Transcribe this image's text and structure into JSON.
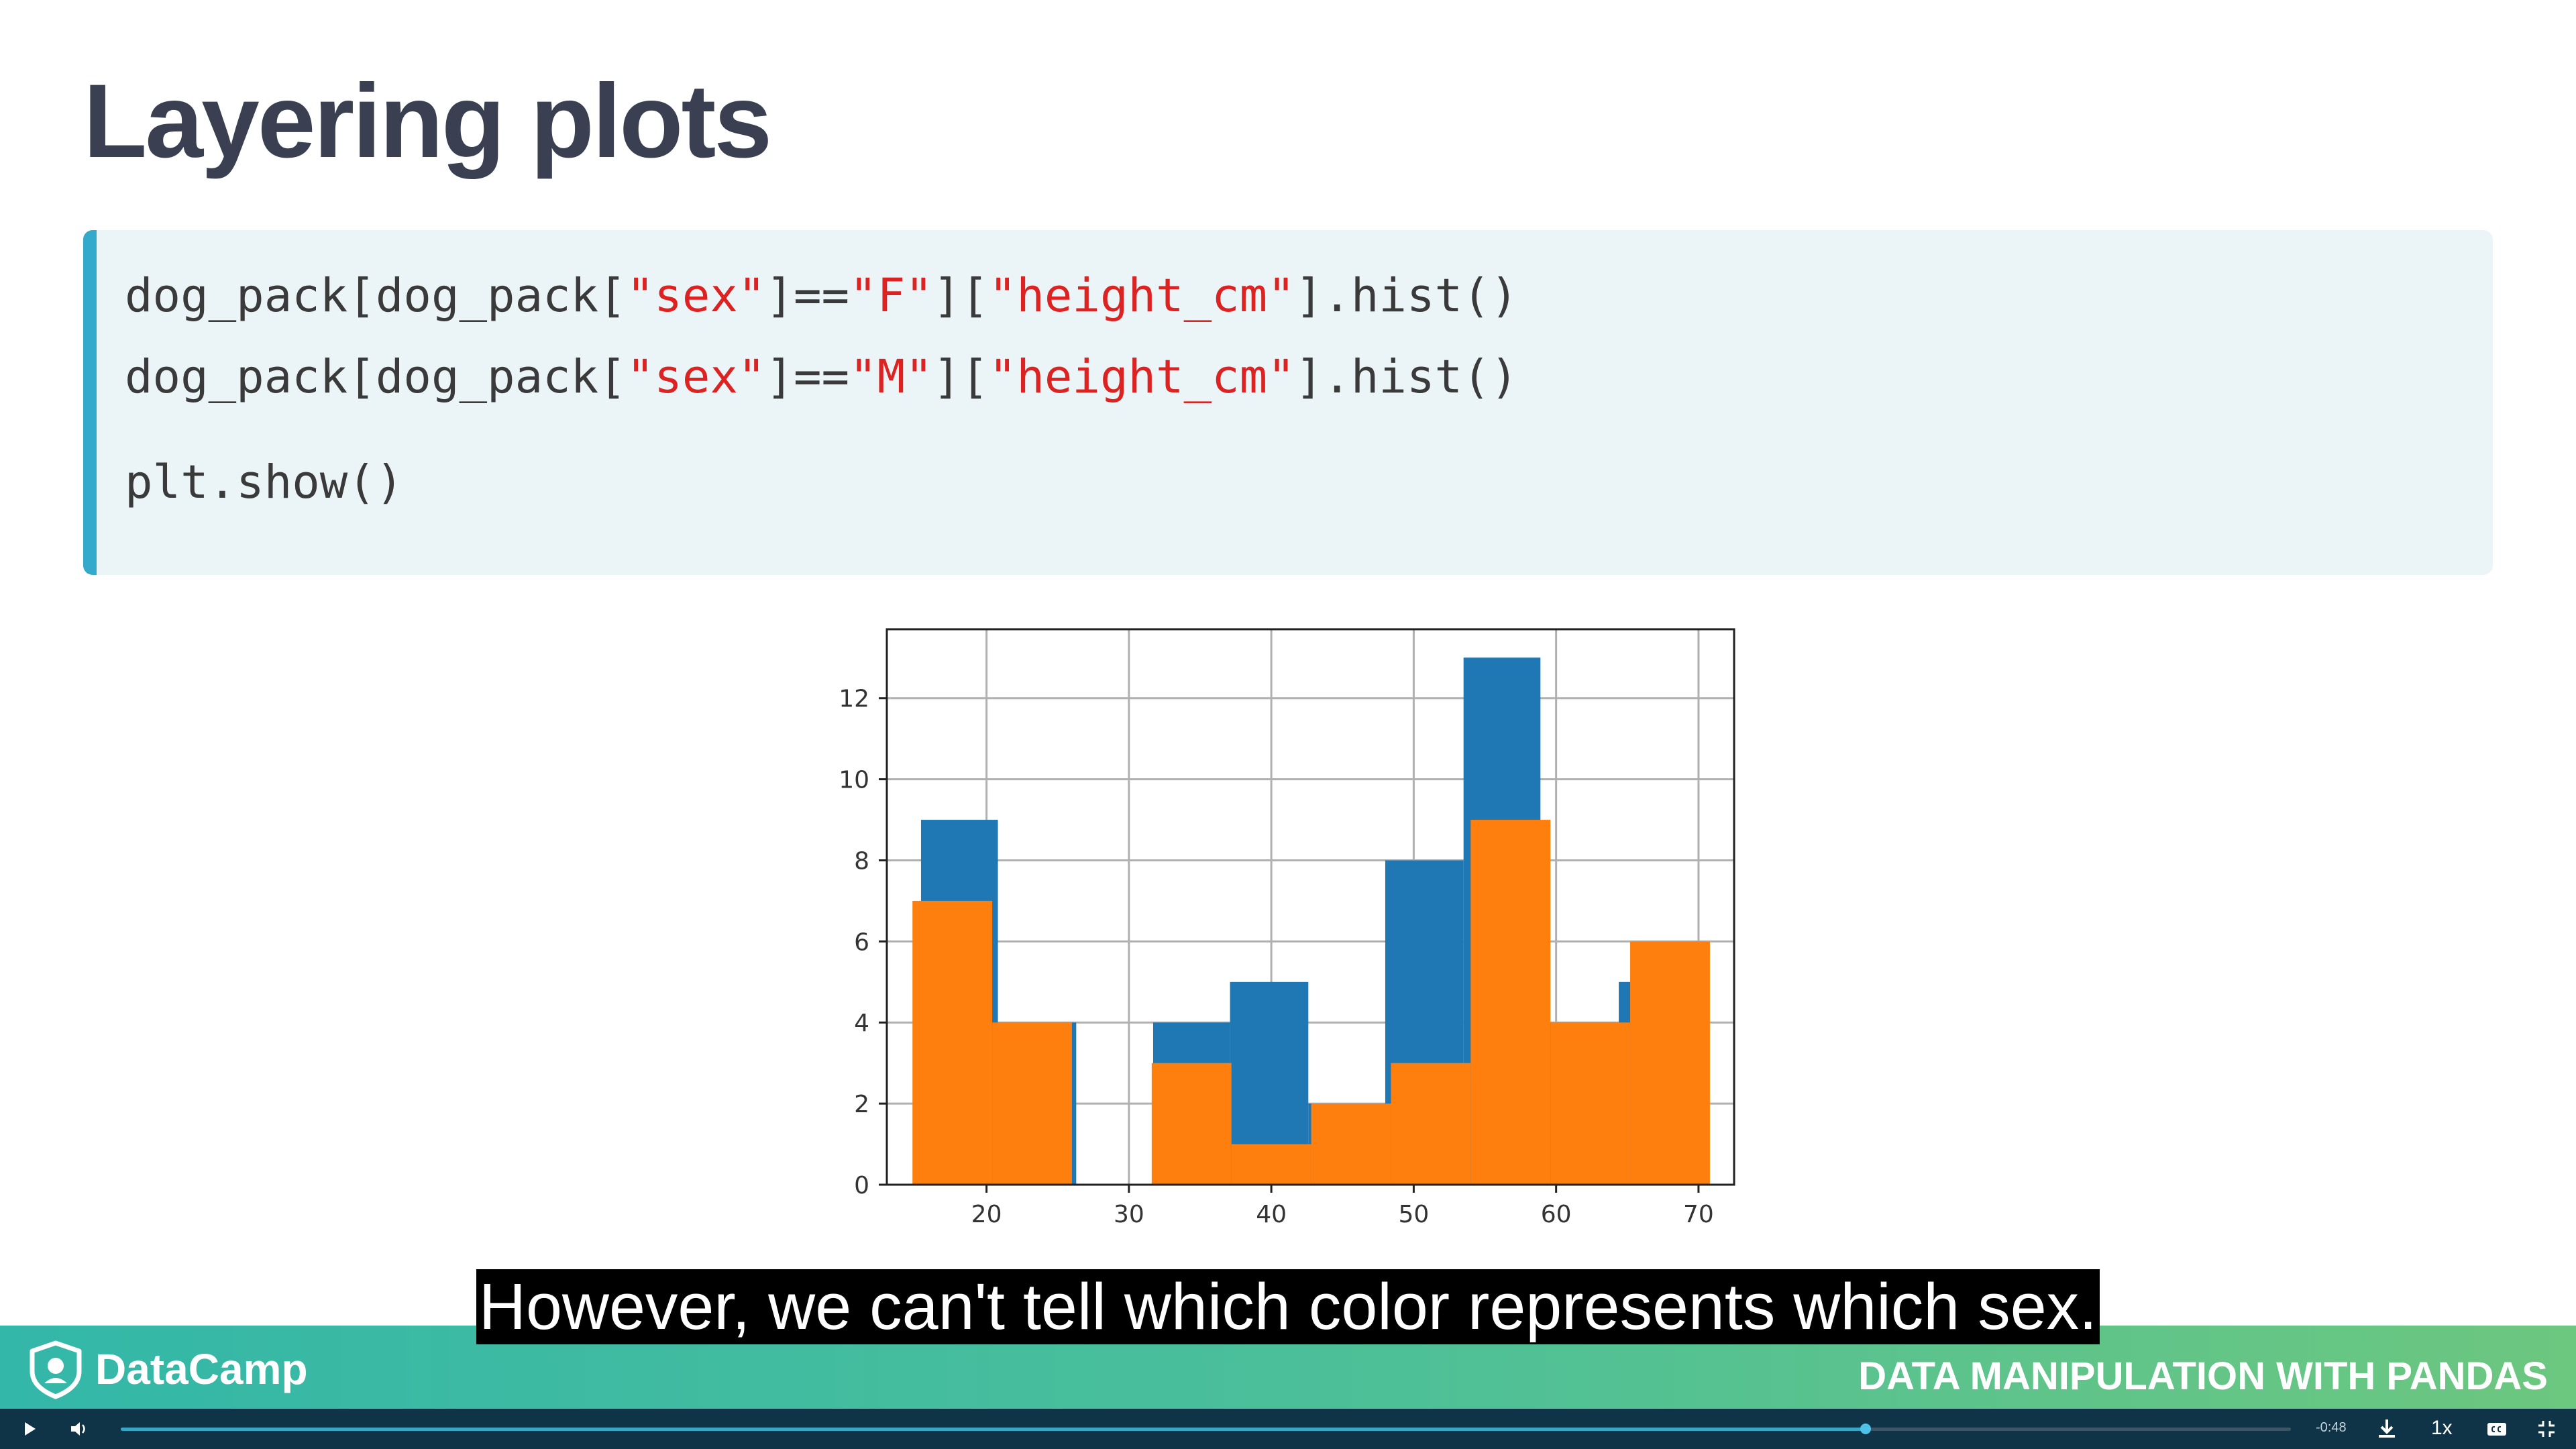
{
  "slide": {
    "title": "Layering plots",
    "code": {
      "line1": {
        "a": "dog_pack[dog_pack[",
        "s1": "\"sex\"",
        "b": "]==",
        "s2": "\"F\"",
        "c": "][",
        "s3": "\"height_cm\"",
        "d": "].hist()"
      },
      "line2": {
        "a": "dog_pack[dog_pack[",
        "s1": "\"sex\"",
        "b": "]==",
        "s2": "\"M\"",
        "c": "][",
        "s3": "\"height_cm\"",
        "d": "].hist()"
      },
      "line3": "plt.show()"
    }
  },
  "chart_data": {
    "type": "bar",
    "title": "",
    "xlabel": "",
    "ylabel": "",
    "xlim": [
      13,
      72.5
    ],
    "ylim": [
      0,
      13.7
    ],
    "xticks": [
      20,
      30,
      40,
      50,
      60,
      70
    ],
    "yticks": [
      0,
      2,
      4,
      6,
      8,
      10,
      12
    ],
    "grid": true,
    "legend": "none",
    "series": [
      {
        "color": "#1f77b4",
        "bins": [
          {
            "x0": 15.4,
            "x1": 20.8,
            "count": 9
          },
          {
            "x0": 20.8,
            "x1": 26.3,
            "count": 4
          },
          {
            "x0": 26.3,
            "x1": 31.7,
            "count": 0
          },
          {
            "x0": 31.7,
            "x1": 37.1,
            "count": 4
          },
          {
            "x0": 37.1,
            "x1": 42.6,
            "count": 5
          },
          {
            "x0": 42.6,
            "x1": 48.0,
            "count": 2
          },
          {
            "x0": 48.0,
            "x1": 53.5,
            "count": 8
          },
          {
            "x0": 53.5,
            "x1": 58.9,
            "count": 13
          },
          {
            "x0": 58.9,
            "x1": 64.4,
            "count": 4
          },
          {
            "x0": 64.4,
            "x1": 69.8,
            "count": 5
          }
        ]
      },
      {
        "color": "#ff7f0e",
        "bins": [
          {
            "x0": 14.8,
            "x1": 20.4,
            "count": 7
          },
          {
            "x0": 20.4,
            "x1": 26.0,
            "count": 4
          },
          {
            "x0": 26.0,
            "x1": 31.6,
            "count": 0
          },
          {
            "x0": 31.6,
            "x1": 37.2,
            "count": 3
          },
          {
            "x0": 37.2,
            "x1": 42.8,
            "count": 1
          },
          {
            "x0": 42.8,
            "x1": 48.4,
            "count": 2
          },
          {
            "x0": 48.4,
            "x1": 54.0,
            "count": 3
          },
          {
            "x0": 54.0,
            "x1": 59.6,
            "count": 9
          },
          {
            "x0": 59.6,
            "x1": 65.2,
            "count": 4
          },
          {
            "x0": 65.2,
            "x1": 70.8,
            "count": 6
          }
        ]
      }
    ]
  },
  "caption": "However, we can't tell which color represents which sex.",
  "footer": {
    "logo_text": "DataCamp",
    "course_name": "DATA MANIPULATION WITH PANDAS"
  },
  "player": {
    "time_remaining": "-0:48",
    "speed": "1x",
    "progress": 0.804
  },
  "colors": {
    "title": "#3a4051",
    "code_bg": "#ebf4f7",
    "code_accent": "#33aacc",
    "code_string": "#dd2222",
    "player_bg": "#0f3347"
  }
}
